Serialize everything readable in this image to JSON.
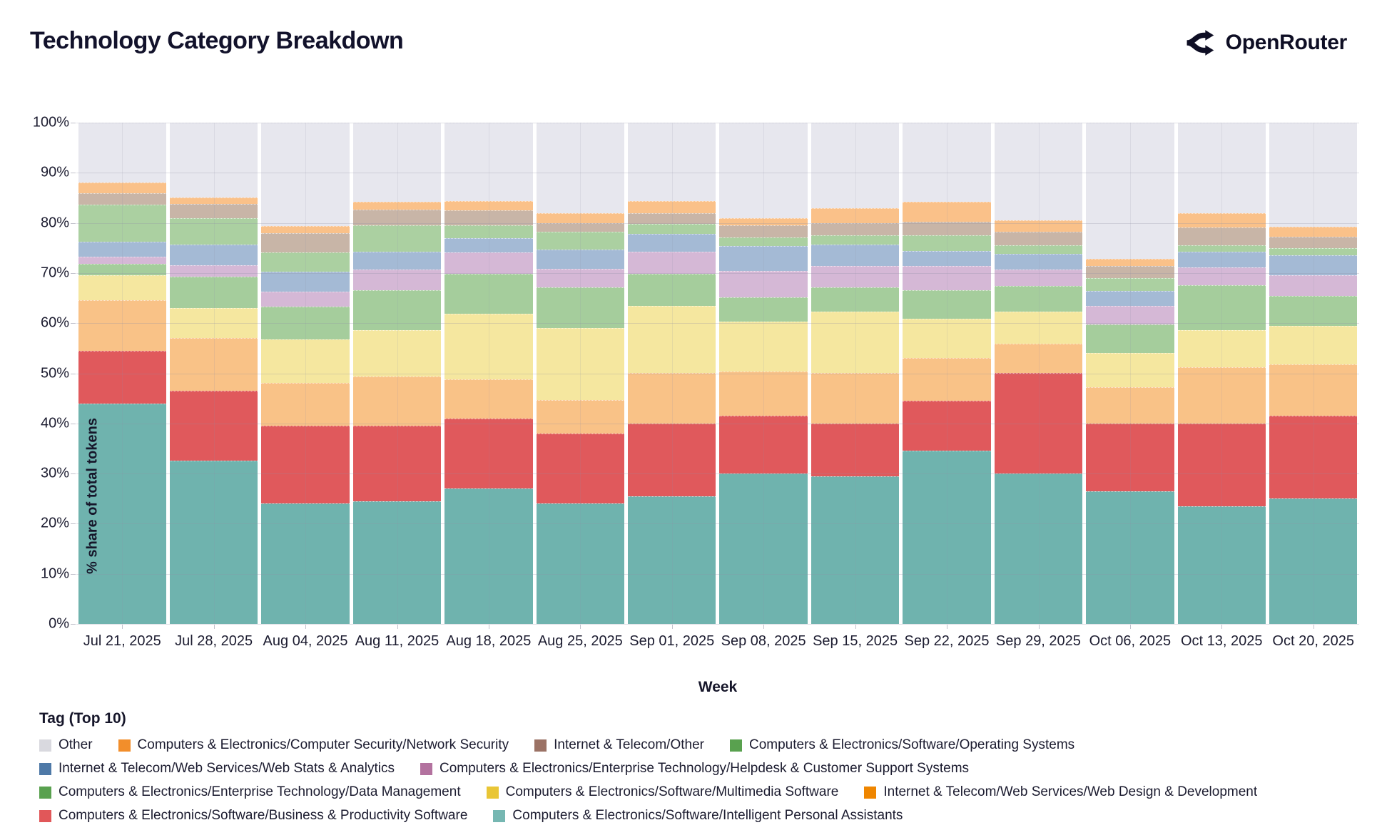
{
  "header": {
    "title": "Technology Category Breakdown",
    "brand": "OpenRouter"
  },
  "chart_data": {
    "type": "bar",
    "stacked": true,
    "title": "Technology Category Breakdown",
    "xlabel": "Week",
    "ylabel": "% share of total tokens",
    "legend_title": "Tag (Top 10)",
    "ylim": [
      0,
      100
    ],
    "ytick_labels": [
      "0%",
      "10%",
      "20%",
      "30%",
      "40%",
      "50%",
      "60%",
      "70%",
      "80%",
      "90%",
      "100%"
    ],
    "grid": true,
    "legend_position": "bottom",
    "categories": [
      "Jul 21, 2025",
      "Jul 28, 2025",
      "Aug 04, 2025",
      "Aug 11, 2025",
      "Aug 18, 2025",
      "Aug 25, 2025",
      "Sep 01, 2025",
      "Sep 08, 2025",
      "Sep 15, 2025",
      "Sep 22, 2025",
      "Sep 29, 2025",
      "Oct 06, 2025",
      "Oct 13, 2025",
      "Oct 20, 2025"
    ],
    "series_note": "values are % of total tokens per week, listed bottom-to-top of the stack",
    "series": [
      {
        "name": "Computers & Electronics/Software/Intelligent Personal Assistants",
        "legend_color": "#76b7b2",
        "bar_color": "#6fb3ae",
        "pattern": "none",
        "values": [
          44,
          32.5,
          24,
          24.5,
          27,
          24,
          25.5,
          30,
          29.5,
          34.5,
          30,
          26.5,
          23.5,
          25
        ]
      },
      {
        "name": "Computers & Electronics/Software/Business & Productivity Software",
        "legend_color": "#e15759",
        "bar_color": "#e0595c",
        "pattern": "none",
        "values": [
          10.5,
          14,
          15.5,
          15,
          14,
          14,
          14.5,
          11.5,
          10.5,
          10,
          20,
          13.5,
          16.5,
          16.5
        ]
      },
      {
        "name": "Internet & Telecom/Web Services/Web Design & Development",
        "legend_color": "#ef8600",
        "bar_color": "#f9c287",
        "pattern": "none",
        "values": [
          10,
          10.5,
          8.5,
          9.8,
          7.8,
          6.7,
          10.1,
          8.9,
          10,
          8.5,
          5.9,
          7.2,
          11.2,
          10.2
        ]
      },
      {
        "name": "Computers & Electronics/Software/Multimedia Software",
        "legend_color": "#e9c636",
        "bar_color": "#f5e79f",
        "pattern": "none",
        "values": [
          5,
          6,
          8.8,
          9.3,
          13,
          14.3,
          13.3,
          9.9,
          12.3,
          7.9,
          6.4,
          6.9,
          7.4,
          7.7
        ]
      },
      {
        "name": "Computers & Electronics/Enterprise Technology/Data Management",
        "legend_color": "#59a14f",
        "bar_color": "#a5cd9c",
        "pattern": "none",
        "values": [
          2.3,
          6.2,
          6.5,
          8,
          8,
          8.1,
          6.4,
          4.8,
          4.9,
          5.6,
          5.1,
          5.7,
          9,
          6
        ]
      },
      {
        "name": "Computers & Electronics/Enterprise Technology/Helpdesk & Customer Support Systems",
        "legend_color": "#b3729f",
        "bar_color": "#d5b8d6",
        "pattern": "dots",
        "values": [
          1.5,
          2.3,
          3,
          4.1,
          4.3,
          3.8,
          4.5,
          5.3,
          4.2,
          4.9,
          3.3,
          3.7,
          3.5,
          4.1
        ]
      },
      {
        "name": "Internet & Telecom/Web Services/Web Stats & Analytics",
        "legend_color": "#4e79a7",
        "bar_color": "#a4bad5",
        "pattern": "none",
        "values": [
          2.9,
          4.2,
          3.9,
          3.6,
          2.8,
          3.8,
          3.5,
          5,
          4.3,
          3,
          3.1,
          2.9,
          3.2,
          4.1
        ]
      },
      {
        "name": "Computers & Electronics/Software/Operating Systems",
        "legend_color": "#59a14f",
        "bar_color": "#abd0a1",
        "pattern": "none",
        "values": [
          7.5,
          5.3,
          3.9,
          5.2,
          2.6,
          3.6,
          2,
          1.7,
          1.8,
          3.1,
          1.8,
          2.6,
          1.3,
          1.3
        ]
      },
      {
        "name": "Internet & Telecom/Other",
        "legend_color": "#9b7265",
        "bar_color": "#c8b5a7",
        "pattern": "dots",
        "values": [
          2.2,
          2.8,
          3.8,
          3.1,
          3,
          1.6,
          2.2,
          2.4,
          2.4,
          2.7,
          2.6,
          2.4,
          3.5,
          2.4
        ]
      },
      {
        "name": "Computers & Electronics/Computer Security/Network Security",
        "legend_color": "#f28e2b",
        "bar_color": "#fac189",
        "pattern": "none",
        "values": [
          2.1,
          1.2,
          1.5,
          1.6,
          1.9,
          2,
          2.4,
          1.4,
          3.1,
          4,
          2.3,
          1.5,
          2.8,
          1.9
        ]
      },
      {
        "name": "Other",
        "legend_color": "#d9d9df",
        "bar_color": "#e7e7ee",
        "pattern": "none",
        "values": [
          12,
          15,
          20.6,
          15.8,
          15.6,
          18.1,
          15.6,
          19.1,
          17,
          15.8,
          19.5,
          27.1,
          18.1,
          20.8
        ]
      }
    ]
  }
}
